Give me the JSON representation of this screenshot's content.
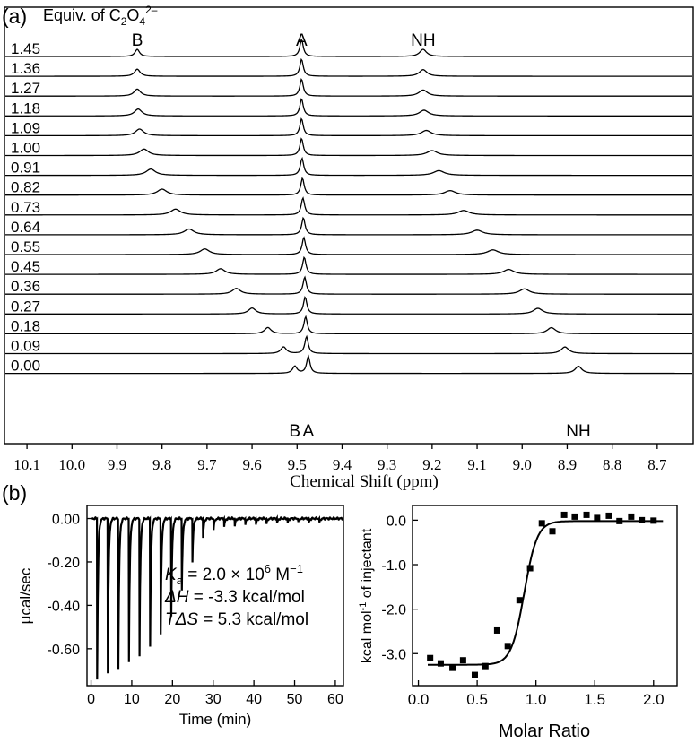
{
  "chart_data": [
    {
      "type": "line",
      "panel_label": "(a)",
      "legend_title": "Equiv. of C",
      "legend_title_sub1": "2",
      "legend_title_o": "O",
      "legend_title_sub2": "4",
      "legend_title_sup": "2–",
      "xlabel": "Chemical Shift (ppm)",
      "xlim": [
        10.15,
        8.62
      ],
      "x_reversed": true,
      "xticks": [
        "10.1",
        "10.0",
        "9.9",
        "9.8",
        "9.7",
        "9.6",
        "9.5",
        "9.4",
        "9.3",
        "9.2",
        "9.1",
        "9.0",
        "8.9",
        "8.8",
        "8.7"
      ],
      "top_labels": [
        {
          "text": "B",
          "x": 9.855
        },
        {
          "text": "A",
          "x": 9.49
        },
        {
          "text": "NH",
          "x": 9.22
        }
      ],
      "bottom_labels": [
        {
          "text": "B",
          "x": 9.505
        },
        {
          "text": "A",
          "x": 9.475
        },
        {
          "text": "NH",
          "x": 8.875
        }
      ],
      "spectra": [
        {
          "equiv": "1.45",
          "peak_B": 9.855,
          "peak_A": 9.49,
          "peak_NH": 9.22
        },
        {
          "equiv": "1.36",
          "peak_B": 9.855,
          "peak_A": 9.49,
          "peak_NH": 9.22
        },
        {
          "equiv": "1.27",
          "peak_B": 9.855,
          "peak_A": 9.49,
          "peak_NH": 9.22
        },
        {
          "equiv": "1.18",
          "peak_B": 9.853,
          "peak_A": 9.49,
          "peak_NH": 9.218
        },
        {
          "equiv": "1.09",
          "peak_B": 9.85,
          "peak_A": 9.49,
          "peak_NH": 9.213
        },
        {
          "equiv": "1.00",
          "peak_B": 9.84,
          "peak_A": 9.49,
          "peak_NH": 9.2
        },
        {
          "equiv": "0.91",
          "peak_B": 9.825,
          "peak_A": 9.489,
          "peak_NH": 9.185
        },
        {
          "equiv": "0.82",
          "peak_B": 9.8,
          "peak_A": 9.488,
          "peak_NH": 9.16
        },
        {
          "equiv": "0.73",
          "peak_B": 9.77,
          "peak_A": 9.487,
          "peak_NH": 9.13
        },
        {
          "equiv": "0.64",
          "peak_B": 9.74,
          "peak_A": 9.486,
          "peak_NH": 9.1
        },
        {
          "equiv": "0.55",
          "peak_B": 9.705,
          "peak_A": 9.485,
          "peak_NH": 9.065
        },
        {
          "equiv": "0.45",
          "peak_B": 9.67,
          "peak_A": 9.484,
          "peak_NH": 9.03
        },
        {
          "equiv": "0.36",
          "peak_B": 9.635,
          "peak_A": 9.483,
          "peak_NH": 8.995
        },
        {
          "equiv": "0.27",
          "peak_B": 9.6,
          "peak_A": 9.482,
          "peak_NH": 8.965
        },
        {
          "equiv": "0.18",
          "peak_B": 9.565,
          "peak_A": 9.481,
          "peak_NH": 8.935
        },
        {
          "equiv": "0.09",
          "peak_B": 9.53,
          "peak_A": 9.479,
          "peak_NH": 8.905
        },
        {
          "equiv": "0.00",
          "peak_B": 9.505,
          "peak_A": 9.475,
          "peak_NH": 8.875
        }
      ]
    },
    {
      "type": "line",
      "panel_label": "(b)",
      "xlabel": "Time (min)",
      "ylabel": "μcal/sec",
      "xlim": [
        -1,
        62
      ],
      "ylim": [
        -0.77,
        0.06
      ],
      "xticks": [
        0,
        10,
        20,
        30,
        40,
        50,
        60
      ],
      "yticks": [
        "0.00",
        "-0.20",
        "-0.40",
        "-0.60"
      ],
      "ytick_values": [
        0.0,
        -0.2,
        -0.4,
        -0.6
      ],
      "injections": [
        {
          "t": 1.5,
          "depth": -0.74
        },
        {
          "t": 4.1,
          "depth": -0.71
        },
        {
          "t": 6.7,
          "depth": -0.69
        },
        {
          "t": 9.3,
          "depth": -0.66
        },
        {
          "t": 11.9,
          "depth": -0.63
        },
        {
          "t": 14.5,
          "depth": -0.59
        },
        {
          "t": 17.1,
          "depth": -0.53
        },
        {
          "t": 19.7,
          "depth": -0.45
        },
        {
          "t": 22.3,
          "depth": -0.33
        },
        {
          "t": 24.9,
          "depth": -0.2
        },
        {
          "t": 27.5,
          "depth": -0.09
        },
        {
          "t": 30.1,
          "depth": -0.05
        },
        {
          "t": 32.7,
          "depth": -0.04
        },
        {
          "t": 35.3,
          "depth": -0.035
        },
        {
          "t": 37.9,
          "depth": -0.03
        },
        {
          "t": 40.5,
          "depth": -0.03
        },
        {
          "t": 43.1,
          "depth": -0.025
        },
        {
          "t": 45.7,
          "depth": -0.025
        },
        {
          "t": 48.3,
          "depth": -0.02
        },
        {
          "t": 50.9,
          "depth": -0.02
        },
        {
          "t": 53.5,
          "depth": -0.02
        },
        {
          "t": 56.1,
          "depth": -0.02
        }
      ],
      "annotation": {
        "ka_var": "K",
        "ka_sub": "a",
        "ka_rest": " = 2.0 × 10",
        "ka_exp": "6",
        "ka_unit": " M",
        "ka_unit_exp": "−1",
        "dh_var": "ΔH",
        "dh_rest": " = -3.3 kcal/mol",
        "tds_var": "TΔS",
        "tds_rest": " = 5.3 kcal/mol"
      }
    },
    {
      "type": "scatter",
      "xlabel": "Molar Ratio",
      "ylabel": "kcal mol",
      "ylabel_sup": "-1",
      "ylabel_rest": " of injectant",
      "xlim": [
        -0.05,
        2.2
      ],
      "ylim": [
        -3.72,
        0.33
      ],
      "xticks": [
        "0.0",
        "0.5",
        "1.0",
        "1.5",
        "2.0"
      ],
      "xtick_values": [
        0.0,
        0.5,
        1.0,
        1.5,
        2.0
      ],
      "yticks": [
        "0.0",
        "-1.0",
        "-2.0",
        "-3.0"
      ],
      "ytick_values": [
        0.0,
        -1.0,
        -2.0,
        -3.0
      ],
      "points": [
        {
          "x": 0.1,
          "y": -3.1
        },
        {
          "x": 0.19,
          "y": -3.22
        },
        {
          "x": 0.29,
          "y": -3.32
        },
        {
          "x": 0.38,
          "y": -3.15
        },
        {
          "x": 0.48,
          "y": -3.48
        },
        {
          "x": 0.57,
          "y": -3.28
        },
        {
          "x": 0.67,
          "y": -2.48
        },
        {
          "x": 0.76,
          "y": -2.83
        },
        {
          "x": 0.86,
          "y": -1.8
        },
        {
          "x": 0.95,
          "y": -1.08
        },
        {
          "x": 1.05,
          "y": -0.07
        },
        {
          "x": 1.14,
          "y": -0.25
        },
        {
          "x": 1.24,
          "y": 0.12
        },
        {
          "x": 1.33,
          "y": 0.08
        },
        {
          "x": 1.43,
          "y": 0.12
        },
        {
          "x": 1.52,
          "y": 0.05
        },
        {
          "x": 1.62,
          "y": 0.1
        },
        {
          "x": 1.71,
          "y": -0.02
        },
        {
          "x": 1.81,
          "y": 0.08
        },
        {
          "x": 1.9,
          "y": 0.0
        },
        {
          "x": 2.0,
          "y": -0.01
        }
      ],
      "fit": {
        "bottom": -3.25,
        "top": -0.02,
        "midpoint": 0.9,
        "width": 0.055
      }
    }
  ]
}
